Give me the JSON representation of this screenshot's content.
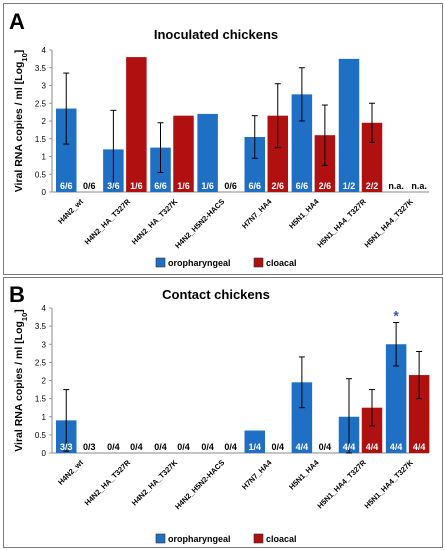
{
  "chart_data": [
    {
      "type": "bar",
      "panel_label": "A",
      "title": "Inoculated chickens",
      "ylabel": "Viral RNA copies / ml [Log10]",
      "ylim": [
        0,
        4
      ],
      "yticks": [
        0,
        0.5,
        1,
        1.5,
        2,
        2.5,
        3,
        3.5,
        4
      ],
      "categories": [
        "H4N2_wt",
        "H4N2_HA_T327R",
        "H4N2_HA_T327K",
        "H4N2_H5N2-HACS",
        "H7N7_HA4",
        "H5N1_HA4",
        "H5N1_HA4_T327R",
        "H5N1_HA4_T327K"
      ],
      "series": [
        {
          "name": "oropharyngeal",
          "color": "#1f6fc4",
          "values": [
            2.35,
            1.2,
            1.25,
            2.2,
            1.55,
            2.75,
            3.75,
            null
          ],
          "errors": [
            1.0,
            1.1,
            0.7,
            null,
            0.6,
            0.75,
            null,
            null
          ],
          "ratios": [
            "6/6",
            "3/6",
            "6/6",
            "1/6",
            "6/6",
            "6/6",
            "1/2",
            "n.a."
          ]
        },
        {
          "name": "cloacal",
          "color": "#b01010",
          "values": [
            null,
            3.8,
            2.15,
            null,
            2.15,
            1.6,
            1.95,
            null
          ],
          "errors": [
            null,
            null,
            null,
            null,
            0.9,
            0.85,
            0.55,
            null
          ],
          "ratios": [
            "0/6",
            "1/6",
            "1/6",
            "0/6",
            "2/6",
            "2/6",
            "2/2",
            "n.a."
          ]
        }
      ],
      "legend": [
        "oropharyngeal",
        "cloacal"
      ]
    },
    {
      "type": "bar",
      "panel_label": "B",
      "title": "Contact chickens",
      "ylabel": "Viral RNA copies / ml [Log10]",
      "ylim": [
        0,
        4
      ],
      "yticks": [
        0,
        0.5,
        1,
        1.5,
        2,
        2.5,
        3,
        3.5,
        4
      ],
      "categories": [
        "H4N2_wt",
        "H4N2_HA_T327R",
        "H4N2_HA_T327K",
        "H4N2_H5N2-HACS",
        "H7N7_HA4",
        "H5N1_HA4",
        "H5N1_HA4_T327R",
        "H5N1_HA4_T327K"
      ],
      "series": [
        {
          "name": "oropharyngeal",
          "color": "#1f6fc4",
          "values": [
            0.9,
            null,
            null,
            null,
            0.62,
            1.95,
            1.0,
            3.0
          ],
          "errors": [
            0.85,
            null,
            null,
            null,
            null,
            0.7,
            1.05,
            0.6
          ],
          "ratios": [
            "3/3",
            "0/4",
            "0/4",
            "0/4",
            "1/4",
            "4/4",
            "4/4",
            "4/4"
          ]
        },
        {
          "name": "cloacal",
          "color": "#b01010",
          "values": [
            null,
            null,
            null,
            null,
            null,
            null,
            1.25,
            2.15
          ],
          "errors": [
            null,
            null,
            null,
            null,
            null,
            null,
            0.5,
            0.65
          ],
          "ratios": [
            "0/3",
            "0/4",
            "0/4",
            "0/4",
            "0/4",
            "0/4",
            "4/4",
            "4/4"
          ]
        }
      ],
      "annotations": [
        "*"
      ],
      "legend": [
        "oropharyngeal",
        "cloacal"
      ]
    }
  ]
}
